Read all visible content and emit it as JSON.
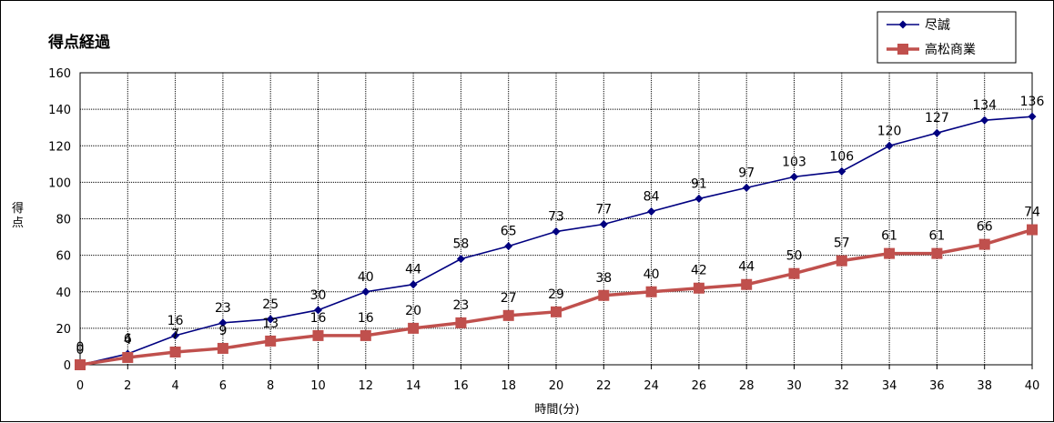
{
  "chart_data": {
    "type": "line",
    "title": "得点経過",
    "xlabel": "時間(分)",
    "ylabel": "得点",
    "x": [
      0,
      2,
      4,
      6,
      8,
      10,
      12,
      14,
      16,
      18,
      20,
      22,
      24,
      26,
      28,
      30,
      32,
      34,
      36,
      38,
      40
    ],
    "xlim": [
      0,
      40
    ],
    "ylim": [
      0,
      160
    ],
    "y_ticks": [
      0,
      20,
      40,
      60,
      80,
      100,
      120,
      140,
      160
    ],
    "grid": true,
    "legend_position": "top-right",
    "series": [
      {
        "name": "尽誠",
        "color": "#000080",
        "marker": "diamond",
        "values": [
          0,
          6,
          16,
          23,
          25,
          30,
          40,
          44,
          58,
          65,
          73,
          77,
          84,
          91,
          97,
          103,
          106,
          120,
          127,
          134,
          136
        ]
      },
      {
        "name": "高松商業",
        "color": "#c0504d",
        "marker": "square",
        "values": [
          0,
          4,
          7,
          9,
          13,
          16,
          16,
          20,
          23,
          27,
          29,
          38,
          40,
          42,
          44,
          50,
          57,
          61,
          61,
          66,
          74
        ]
      }
    ]
  }
}
